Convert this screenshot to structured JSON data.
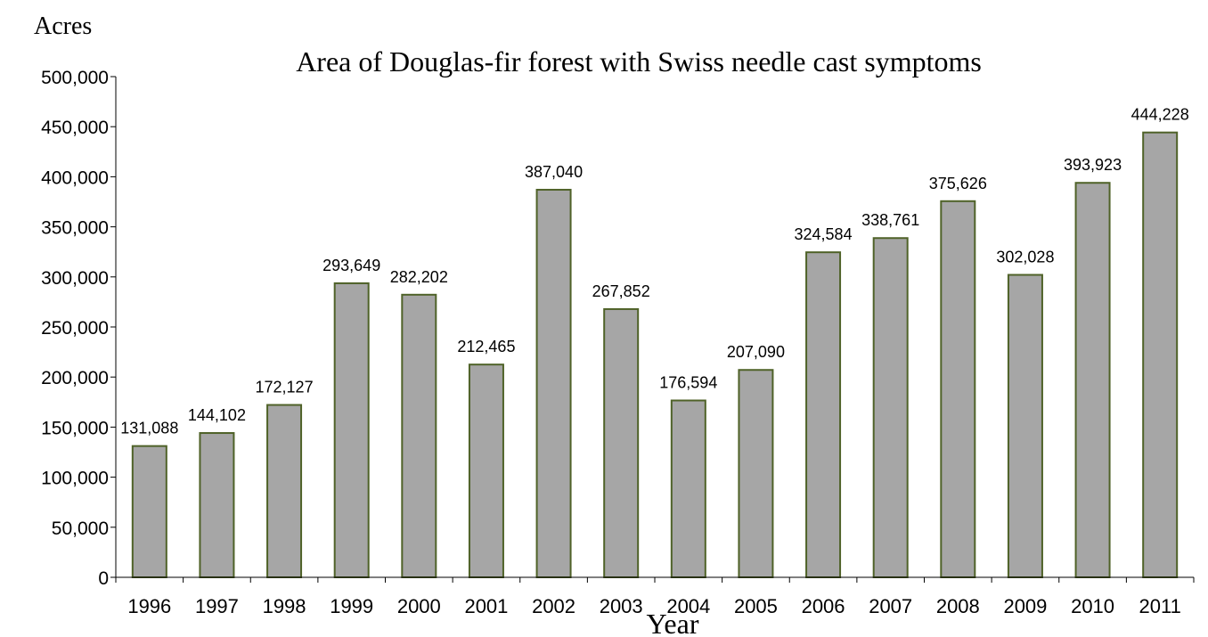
{
  "chart_data": {
    "type": "bar",
    "title": "Area of Douglas-fir forest with Swiss needle cast symptoms",
    "xlabel": "Year",
    "ylabel": "Acres",
    "categories": [
      "1996",
      "1997",
      "1998",
      "1999",
      "2000",
      "2001",
      "2002",
      "2003",
      "2004",
      "2005",
      "2006",
      "2007",
      "2008",
      "2009",
      "2010",
      "2011"
    ],
    "values": [
      131088,
      144102,
      172127,
      293649,
      282202,
      212465,
      387040,
      267852,
      176594,
      207090,
      324584,
      338761,
      375626,
      302028,
      393923,
      444228
    ],
    "data_labels": [
      "131,088",
      "144,102",
      "172,127",
      "293,649",
      "282,202",
      "212,465",
      "387,040",
      "267,852",
      "176,594",
      "207,090",
      "324,584",
      "338,761",
      "375,626",
      "302,028",
      "393,923",
      "444,228"
    ],
    "ylim": [
      0,
      500000
    ],
    "y_ticks": [
      "0",
      "50,000",
      "100,000",
      "150,000",
      "200,000",
      "250,000",
      "300,000",
      "350,000",
      "400,000",
      "450,000",
      "500,000"
    ],
    "grid": false,
    "legend": "none",
    "colors": {
      "bar_fill": "#a6a6a6",
      "bar_stroke": "#4f6228"
    }
  }
}
